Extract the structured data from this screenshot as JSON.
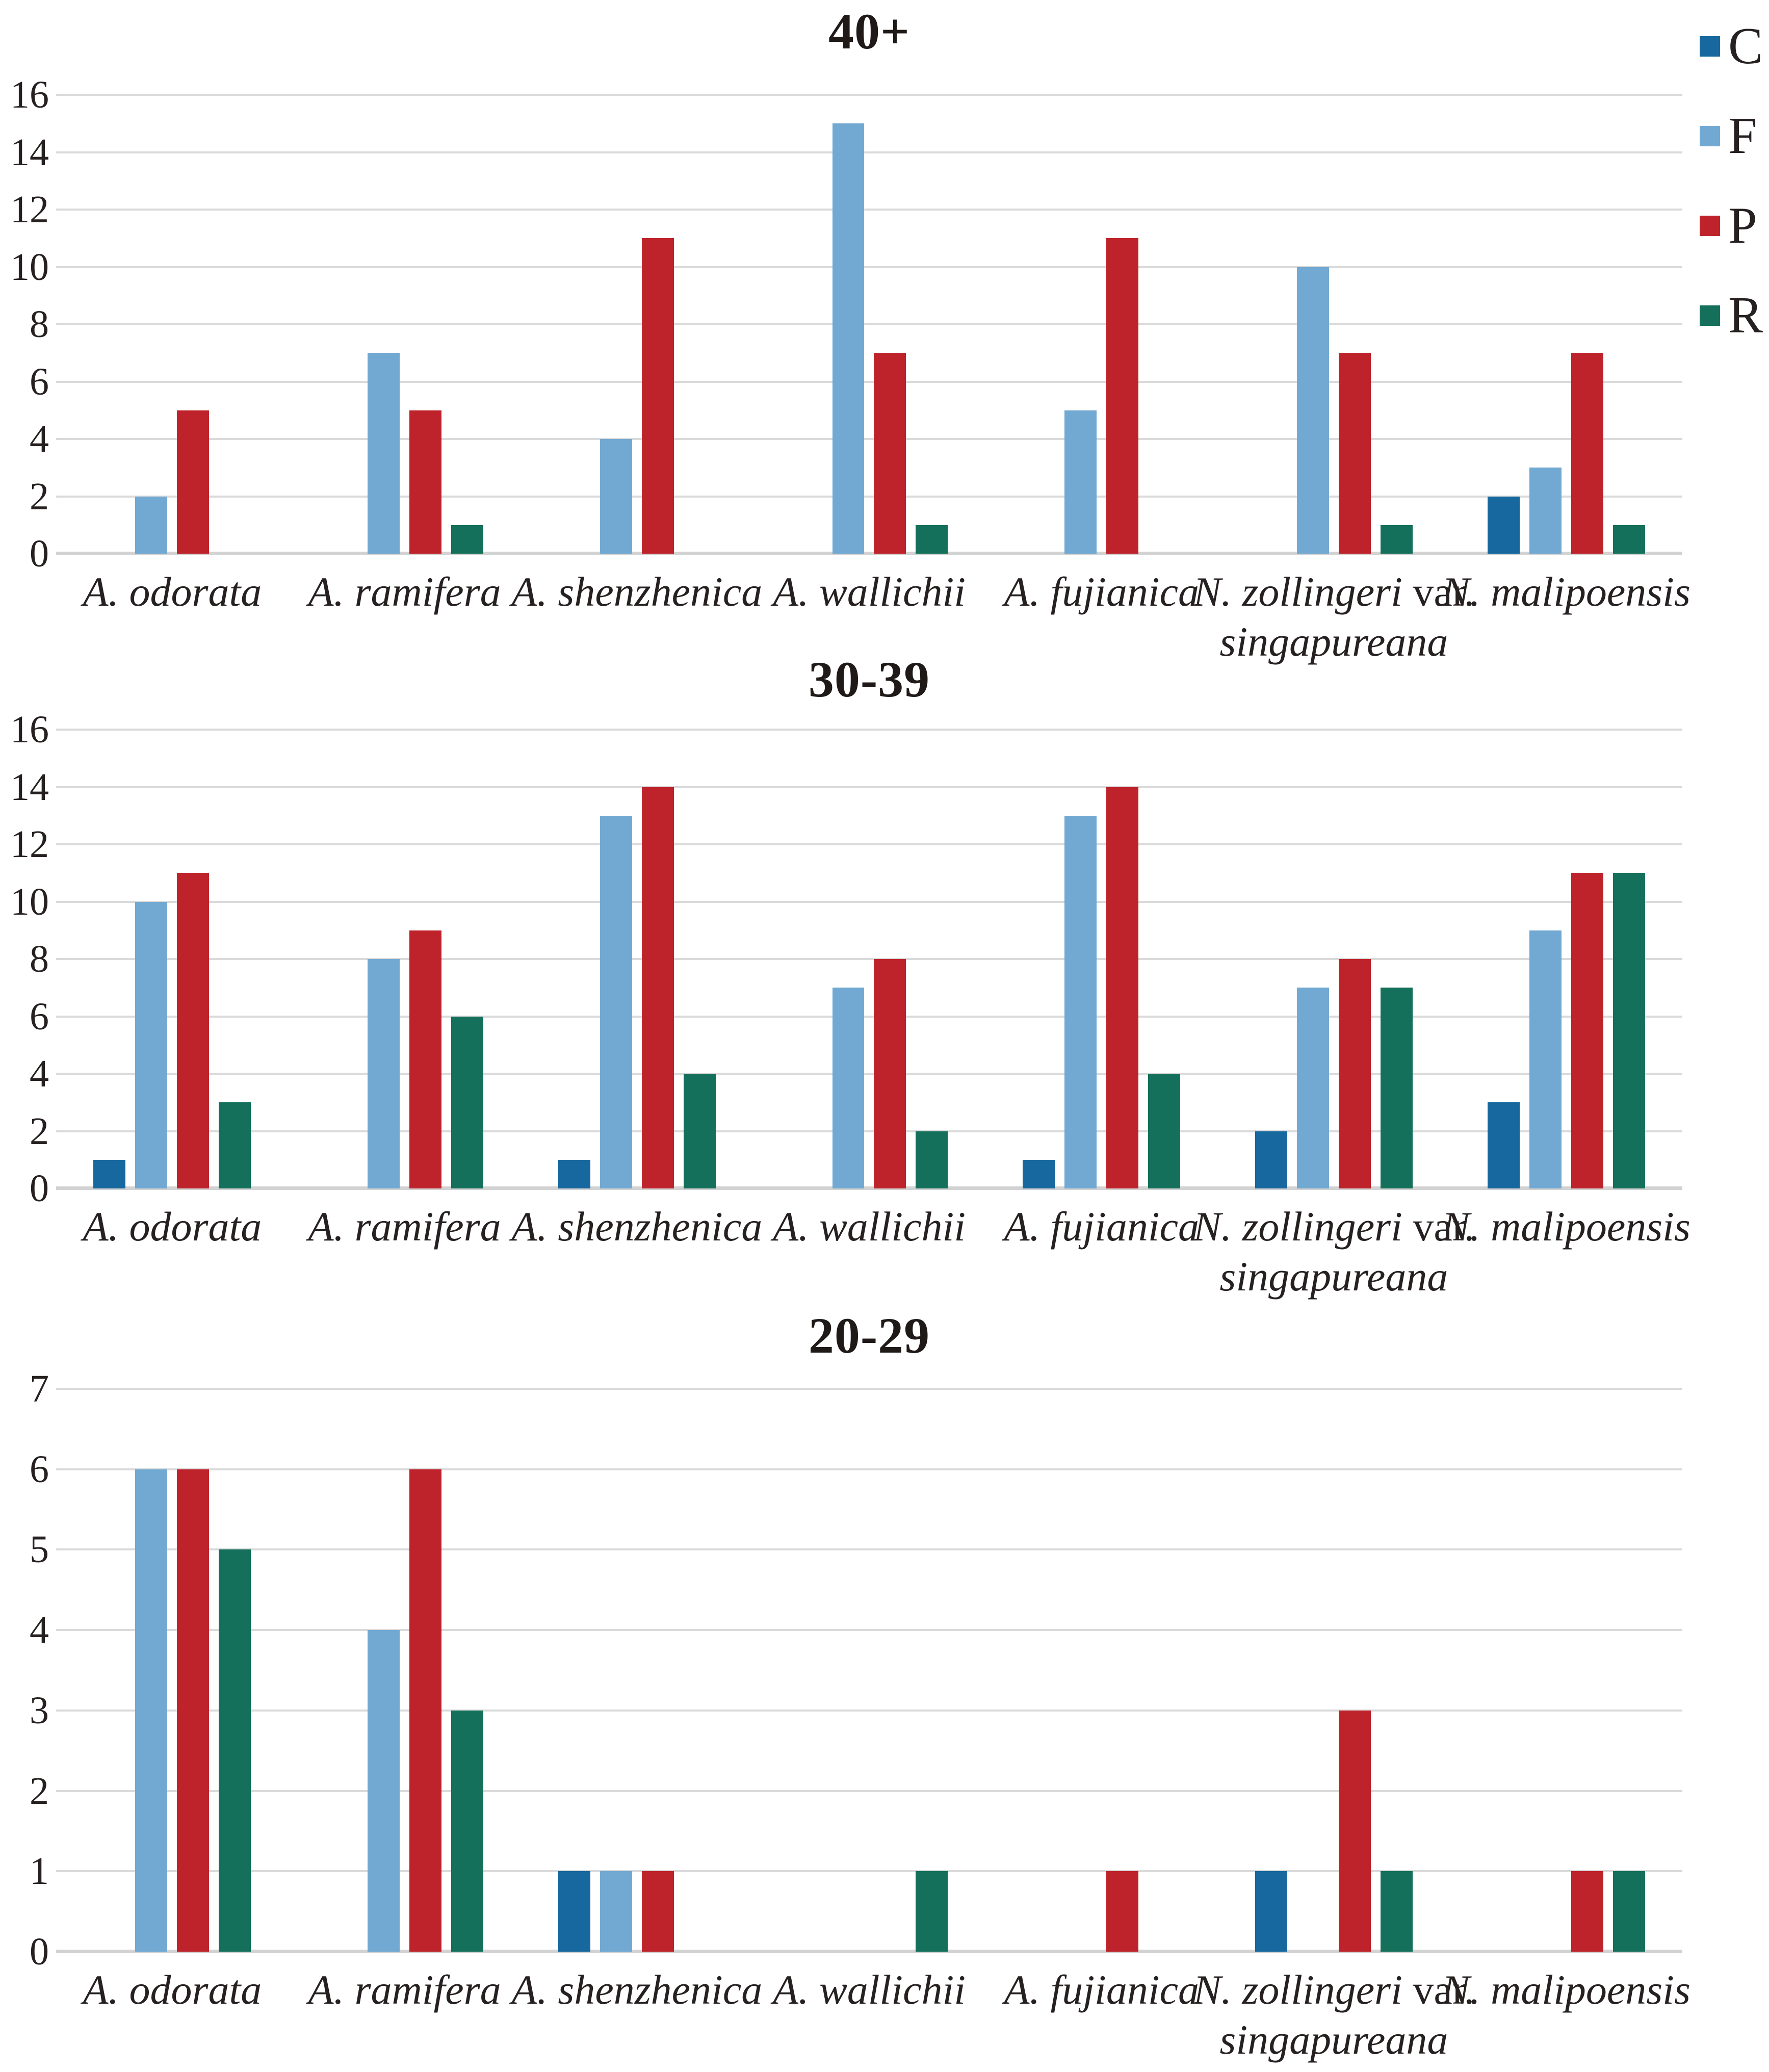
{
  "legend": {
    "position": "top-right",
    "items": [
      {
        "label": "C",
        "color": "#16689E"
      },
      {
        "label": "F",
        "color": "#71A9D2"
      },
      {
        "label": "P",
        "color": "#BE232B"
      },
      {
        "label": "R",
        "color": "#14705A"
      }
    ]
  },
  "chart_data": [
    {
      "type": "bar",
      "title": "40+",
      "xlabel": "",
      "ylabel": "",
      "ylim": [
        0,
        16
      ],
      "ytick_step": 2,
      "grid": true,
      "legend_position": "right",
      "categories": [
        "A. odorata",
        "A. ramifera",
        "A. shenzhenica",
        "A. wallichii",
        "A. fujianica",
        "N. zollingeri var. singapureana",
        "N. malipoensis"
      ],
      "series": [
        {
          "name": "C",
          "values": [
            0,
            0,
            0,
            0,
            0,
            0,
            2
          ]
        },
        {
          "name": "F",
          "values": [
            2,
            7,
            4,
            15,
            5,
            10,
            3
          ]
        },
        {
          "name": "P",
          "values": [
            5,
            5,
            11,
            7,
            11,
            7,
            7
          ]
        },
        {
          "name": "R",
          "values": [
            0,
            1,
            0,
            1,
            0,
            1,
            1
          ]
        }
      ]
    },
    {
      "type": "bar",
      "title": "30-39",
      "xlabel": "",
      "ylabel": "",
      "ylim": [
        0,
        16
      ],
      "ytick_step": 2,
      "grid": true,
      "legend_position": "none",
      "categories": [
        "A. odorata",
        "A. ramifera",
        "A. shenzhenica",
        "A. wallichii",
        "A. fujianica",
        "N. zollingeri var. singapureana",
        "N. malipoensis"
      ],
      "series": [
        {
          "name": "C",
          "values": [
            1,
            0,
            1,
            0,
            1,
            2,
            3
          ]
        },
        {
          "name": "F",
          "values": [
            10,
            8,
            13,
            7,
            13,
            7,
            9
          ]
        },
        {
          "name": "P",
          "values": [
            11,
            9,
            14,
            8,
            14,
            8,
            11
          ]
        },
        {
          "name": "R",
          "values": [
            3,
            6,
            4,
            2,
            4,
            7,
            11
          ]
        }
      ]
    },
    {
      "type": "bar",
      "title": "20-29",
      "xlabel": "",
      "ylabel": "",
      "ylim": [
        0,
        7
      ],
      "ytick_step": 1,
      "grid": true,
      "legend_position": "none",
      "categories": [
        "A. odorata",
        "A. ramifera",
        "A. shenzhenica",
        "A. wallichii",
        "A. fujianica",
        "N. zollingeri var. singapureana",
        "N. malipoensis"
      ],
      "series": [
        {
          "name": "C",
          "values": [
            0,
            0,
            1,
            0,
            0,
            1,
            0
          ]
        },
        {
          "name": "F",
          "values": [
            6,
            4,
            1,
            0,
            0,
            0,
            0
          ]
        },
        {
          "name": "P",
          "values": [
            6,
            6,
            1,
            0,
            1,
            3,
            1
          ]
        },
        {
          "name": "R",
          "values": [
            5,
            3,
            0,
            1,
            0,
            1,
            1
          ]
        }
      ]
    }
  ],
  "labels_rich": [
    [
      [
        {
          "t": "A. odorata",
          "i": true
        }
      ]
    ],
    [
      [
        {
          "t": "A. ramifera",
          "i": true
        }
      ]
    ],
    [
      [
        {
          "t": "A. shenzhenica",
          "i": true
        }
      ]
    ],
    [
      [
        {
          "t": "A. wallichii",
          "i": true
        }
      ]
    ],
    [
      [
        {
          "t": "A. fujianica",
          "i": true
        }
      ]
    ],
    [
      [
        {
          "t": "N. zollingeri ",
          "i": true
        },
        {
          "t": "var.",
          "i": false
        }
      ],
      [
        {
          "t": "singapureana",
          "i": true
        }
      ]
    ],
    [
      [
        {
          "t": "N. malipoensis",
          "i": true
        }
      ]
    ]
  ]
}
